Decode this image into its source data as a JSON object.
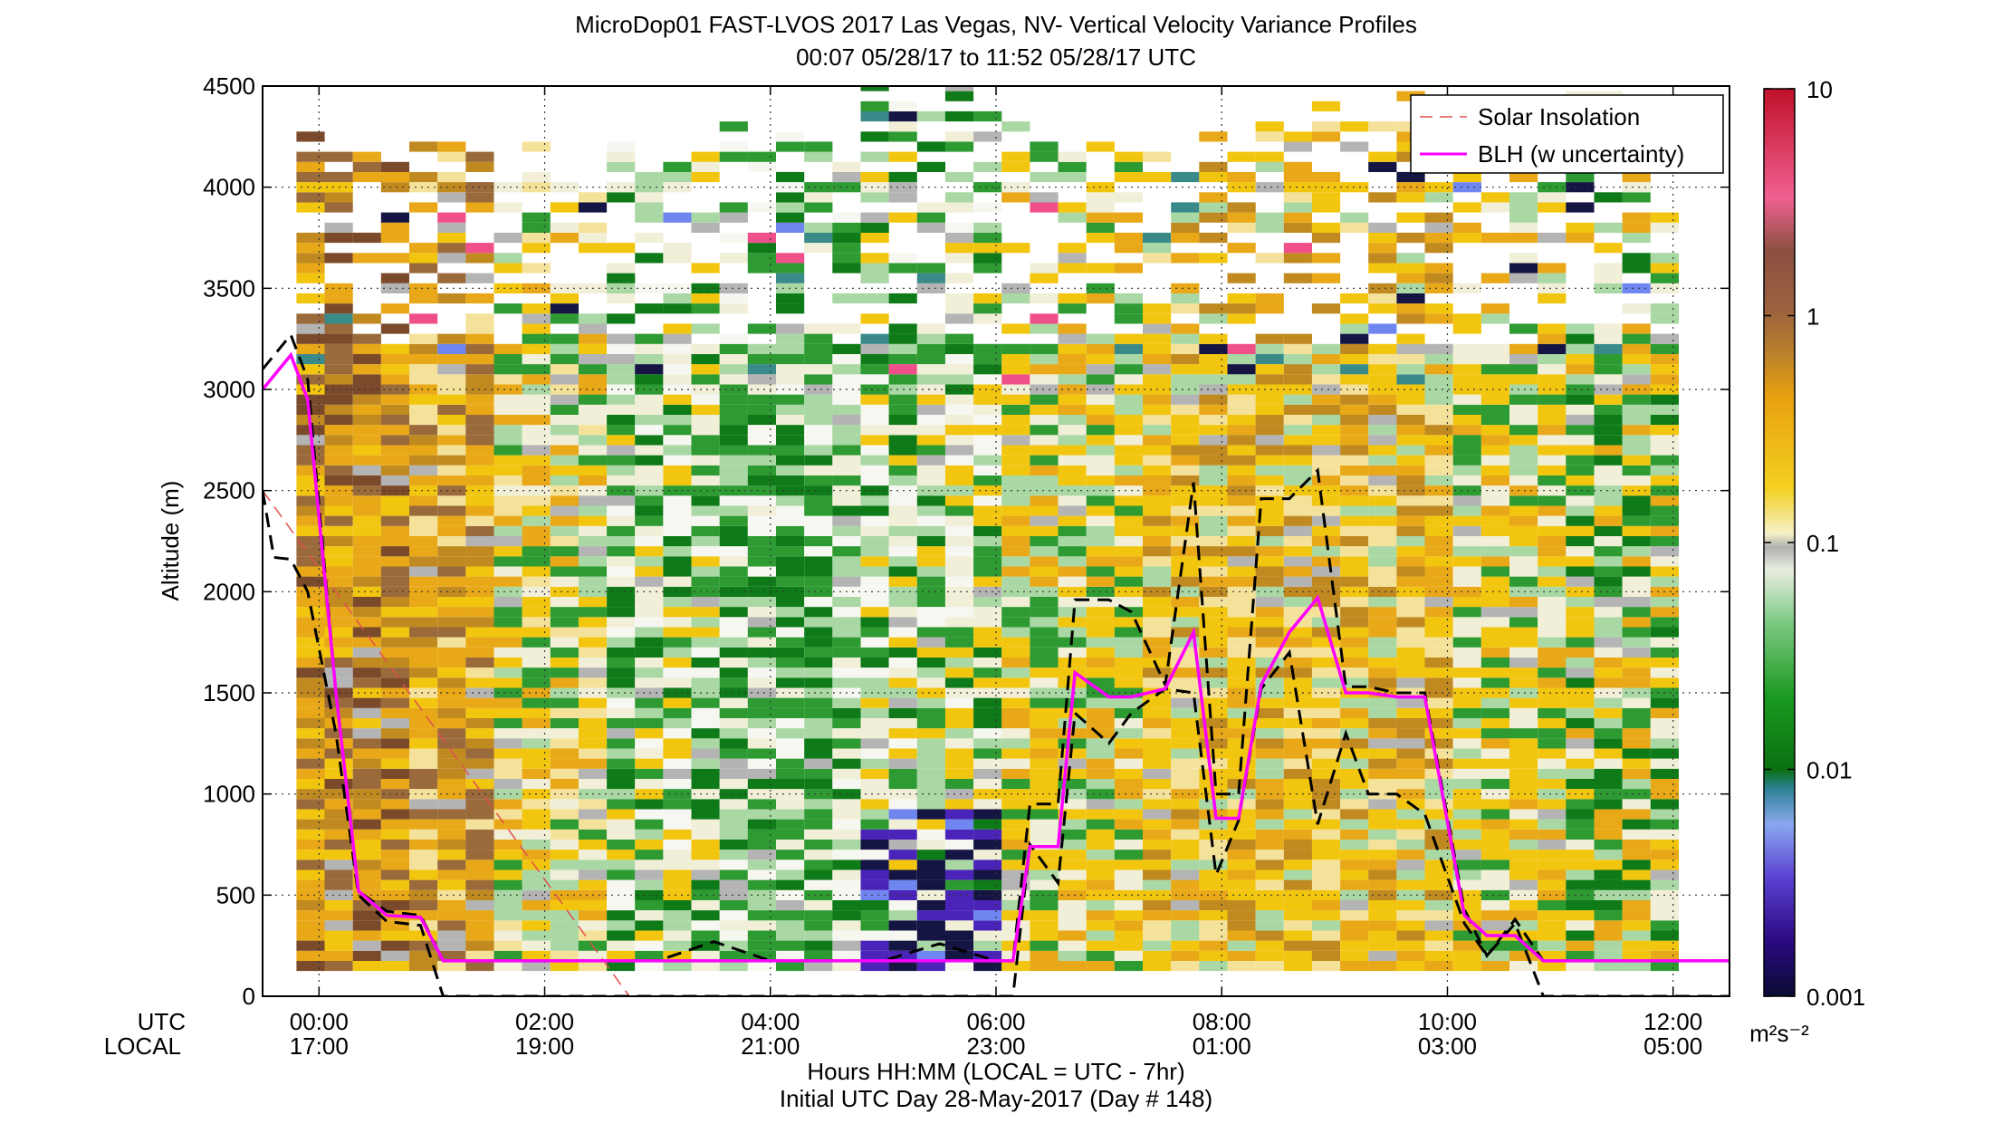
{
  "chart_data": {
    "type": "heatmap",
    "title_line1": "MicroDop01 FAST-LVOS 2017 Las Vegas, NV- Vertical Velocity Variance Profiles",
    "title_line2": "00:07 05/28/17 to 11:52 05/28/17  UTC",
    "ylabel": "Altitude (m)",
    "xlabel_line1": "Hours HH:MM  (LOCAL = UTC - 7hr)",
    "xlabel_line2": "Initial UTC Day 28-May-2017 (Day # 148)",
    "x_row_label_utc": "UTC",
    "x_row_label_local": "LOCAL",
    "xlim_hours": [
      -0.5,
      12.5
    ],
    "ylim": [
      0,
      4500
    ],
    "grid": true,
    "yticks": [
      0,
      500,
      1000,
      1500,
      2000,
      2500,
      3000,
      3500,
      4000,
      4500
    ],
    "xticks_hours": [
      0,
      2,
      4,
      6,
      8,
      10,
      12
    ],
    "xtick_labels_utc": [
      "00:00",
      "02:00",
      "04:00",
      "06:00",
      "08:00",
      "10:00",
      "12:00"
    ],
    "xtick_labels_local": [
      "17:00",
      "19:00",
      "21:00",
      "23:00",
      "01:00",
      "03:00",
      "05:00"
    ],
    "colorbar": {
      "scale": "log",
      "range": [
        0.001,
        10
      ],
      "tick_values": [
        0.001,
        0.01,
        0.1,
        1,
        10
      ],
      "tick_labels": [
        "0.001",
        "0.01",
        "0.1",
        "1",
        "10"
      ],
      "unit_label": "m²s⁻²"
    },
    "legend": {
      "position": "top-right",
      "entries": [
        "Solar Insolation",
        "BLH (w uncertainty)"
      ]
    },
    "colors": {
      "blh": "#ff00ff",
      "solar": "#e05050",
      "uncertainty": "#000000"
    },
    "heatmap_profiles_approx": [
      {
        "hour": 0.25,
        "top_m": 4300,
        "regime": "brown-orange"
      },
      {
        "hour": 1.0,
        "top_m": 4300,
        "regime": "orange"
      },
      {
        "hour": 2.0,
        "top_m": 4200,
        "regime": "orange-mixed"
      },
      {
        "hour": 3.0,
        "top_m": 4300,
        "regime": "green-mixed"
      },
      {
        "hour": 4.0,
        "top_m": 4300,
        "regime": "green"
      },
      {
        "hour": 5.25,
        "top_m": 4500,
        "regime": "green-purple-low"
      },
      {
        "hour": 6.5,
        "top_m": 4300,
        "regime": "yellow-green"
      },
      {
        "hour": 8.0,
        "top_m": 4300,
        "regime": "orange-yellow"
      },
      {
        "hour": 9.5,
        "top_m": 4450,
        "regime": "orange-yellow"
      },
      {
        "hour": 10.5,
        "top_m": 4300,
        "regime": "yellow-green"
      },
      {
        "hour": 11.5,
        "top_m": 4450,
        "regime": "green-yellow"
      }
    ],
    "blh_series": {
      "name": "BLH (w uncertainty)",
      "x_hours": [
        -0.5,
        -0.25,
        -0.1,
        0.15,
        0.35,
        0.6,
        0.9,
        1.1,
        1.5,
        2.0,
        2.5,
        3.0,
        3.5,
        4.0,
        4.5,
        5.0,
        5.5,
        6.0,
        6.15,
        6.3,
        6.55,
        6.7,
        7.0,
        7.2,
        7.5,
        7.75,
        7.95,
        8.15,
        8.35,
        8.6,
        8.85,
        9.1,
        9.3,
        9.55,
        9.8,
        10.15,
        10.35,
        10.6,
        10.85,
        11.1,
        11.3,
        11.6,
        12.0,
        12.5
      ],
      "y_m": [
        3000,
        3170,
        2950,
        1500,
        520,
        400,
        390,
        175,
        175,
        175,
        175,
        175,
        175,
        175,
        175,
        175,
        175,
        175,
        175,
        740,
        740,
        1600,
        1480,
        1480,
        1520,
        1800,
        880,
        880,
        1540,
        1800,
        1970,
        1500,
        1500,
        1480,
        1480,
        400,
        300,
        300,
        175,
        175,
        175,
        175,
        175,
        175
      ]
    },
    "uncertainty_upper": {
      "x_hours": [
        -0.5,
        -0.25,
        -0.1,
        0.15,
        0.35,
        0.6,
        0.9,
        1.1,
        1.5,
        2.0,
        2.5,
        3.0,
        3.5,
        4.0,
        4.5,
        5.0,
        5.5,
        6.0,
        6.15,
        6.3,
        6.55,
        6.7,
        7.0,
        7.2,
        7.5,
        7.75,
        7.95,
        8.15,
        8.35,
        8.6,
        8.85,
        9.1,
        9.3,
        9.55,
        9.8,
        10.15,
        10.35,
        10.6,
        10.85,
        11.1,
        11.3,
        11.6,
        12.0,
        12.5
      ],
      "y_m": [
        3100,
        3270,
        3050,
        1500,
        520,
        420,
        400,
        175,
        175,
        175,
        175,
        175,
        270,
        175,
        175,
        175,
        260,
        175,
        175,
        950,
        950,
        1960,
        1960,
        1900,
        1540,
        2540,
        1000,
        1000,
        2460,
        2460,
        2600,
        1530,
        1530,
        1500,
        1500,
        430,
        200,
        380,
        175,
        175,
        175,
        175,
        175,
        175
      ]
    },
    "uncertainty_lower": {
      "x_hours": [
        -0.5,
        -0.4,
        -0.25,
        -0.1,
        0.15,
        0.35,
        0.6,
        0.9,
        1.1,
        1.5,
        2.0,
        2.5,
        3.0,
        3.5,
        4.0,
        4.5,
        5.0,
        5.5,
        6.0,
        6.15,
        6.3,
        6.55,
        6.7,
        7.0,
        7.2,
        7.5,
        7.75,
        7.95,
        8.15,
        8.35,
        8.6,
        8.85,
        9.1,
        9.3,
        9.55,
        9.8,
        10.15,
        10.35,
        10.6,
        10.85,
        11.1,
        11.3,
        11.6,
        12.0,
        12.5
      ],
      "y_m": [
        2500,
        2170,
        2160,
        2000,
        1300,
        500,
        370,
        350,
        0,
        0,
        0,
        0,
        0,
        0,
        0,
        0,
        0,
        0,
        0,
        0,
        750,
        560,
        1400,
        1250,
        1400,
        1520,
        1500,
        600,
        870,
        1520,
        1700,
        850,
        1300,
        1000,
        1000,
        900,
        360,
        200,
        360,
        0,
        0,
        0,
        0,
        0,
        0
      ]
    },
    "solar_series": {
      "name": "Solar Insolation",
      "x_hours": [
        -0.5,
        2.75
      ],
      "y_m": [
        2500,
        0
      ]
    }
  }
}
